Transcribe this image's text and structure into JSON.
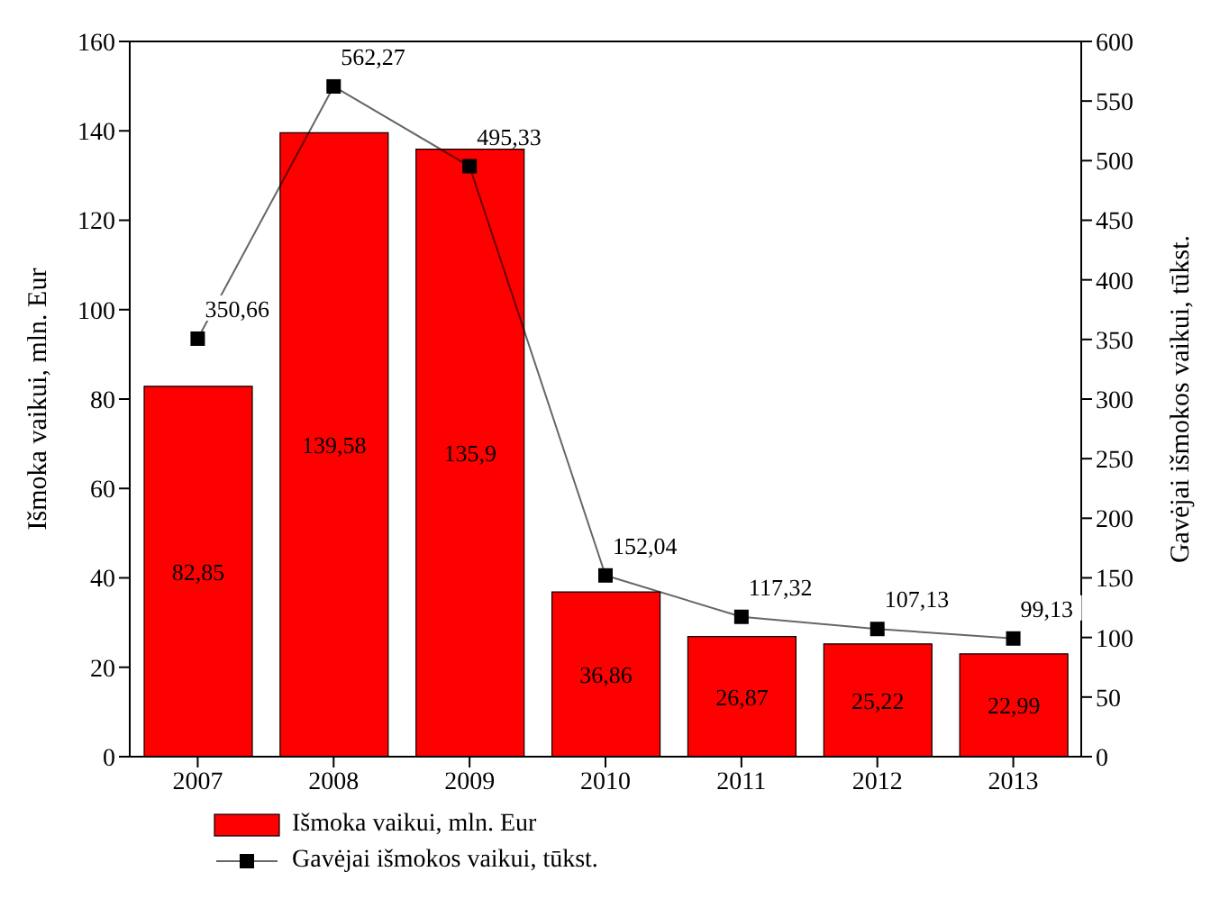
{
  "chart_data": {
    "type": "bar",
    "categories": [
      "2007",
      "2008",
      "2009",
      "2010",
      "2011",
      "2012",
      "2013"
    ],
    "series": [
      {
        "name": "Išmoka vaikui,  mln. Eur",
        "color": "#ff0000",
        "values": [
          82.85,
          139.58,
          135.9,
          36.86,
          26.87,
          25.22,
          22.99
        ],
        "value_labels": [
          "82,85",
          "139,58",
          "135,9",
          "36,86",
          "26,87",
          "25,22",
          "22,99"
        ]
      },
      {
        "name": "Gavėjai išmokos vaikui, tūkst.",
        "type": "line",
        "axis": "y2",
        "color": "#000000",
        "marker": "square",
        "values": [
          350.66,
          562.27,
          495.33,
          152.04,
          117.32,
          107.13,
          99.13
        ],
        "value_labels": [
          "350,66",
          "562,27",
          "495,33",
          "152,04",
          "117,32",
          "107,13",
          "99,13"
        ]
      }
    ],
    "ylabel": "Išmoka vaikui,  mln. Eur",
    "y2label": "Gavėjai išmokos vaikui, tūkst.",
    "ylim": [
      0,
      160
    ],
    "yticks": [
      0,
      20,
      40,
      60,
      80,
      100,
      120,
      140,
      160
    ],
    "y2lim": [
      0,
      600
    ],
    "y2ticks": [
      0,
      50,
      100,
      150,
      200,
      250,
      300,
      350,
      400,
      450,
      500,
      550,
      600
    ],
    "grid": false,
    "legend": "bottom left"
  }
}
